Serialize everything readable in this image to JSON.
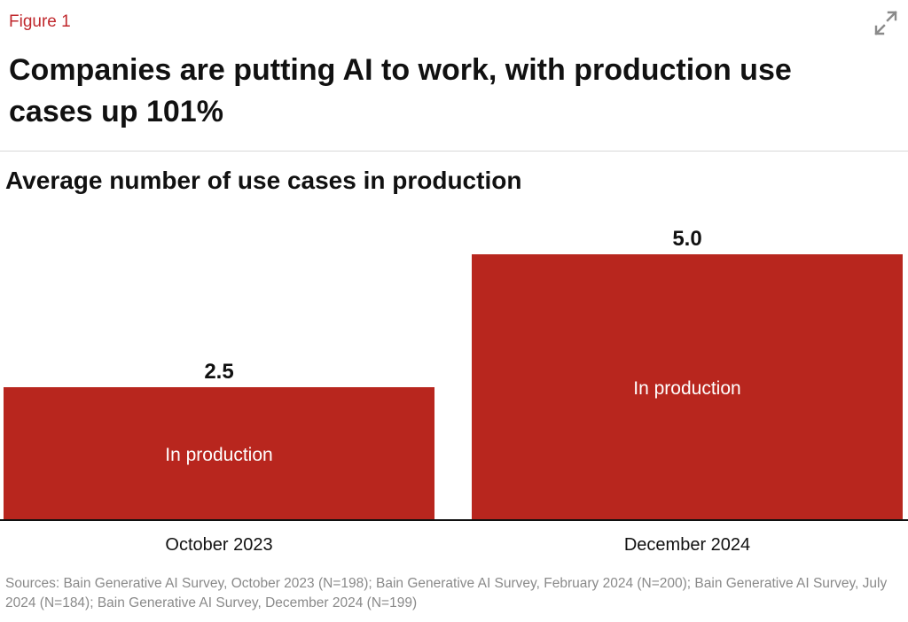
{
  "figure_label": "Figure 1",
  "title": "Companies are putting AI to work, with production use cases up 101%",
  "expand_icon": "expand-arrows-icon",
  "colors": {
    "bar": "#b8261e",
    "figure_label": "#c0282d",
    "axis": "#111111",
    "source_text": "#8a8a8a"
  },
  "chart_data": {
    "type": "bar",
    "title": "Average number of use cases in production",
    "categories": [
      "October 2023",
      "December 2024"
    ],
    "series": [
      {
        "name": "In production",
        "values": [
          2.5,
          5.0
        ]
      }
    ],
    "data_labels": [
      "2.5",
      "5.0"
    ],
    "ylim": [
      0,
      5.0
    ],
    "grid": false,
    "xlabel": "",
    "ylabel": ""
  },
  "sources": "Sources: Bain Generative AI Survey, October 2023 (N=198); Bain Generative AI Survey, February 2024 (N=200); Bain Generative AI Survey, July 2024 (N=184); Bain Generative AI Survey, December 2024 (N=199)"
}
